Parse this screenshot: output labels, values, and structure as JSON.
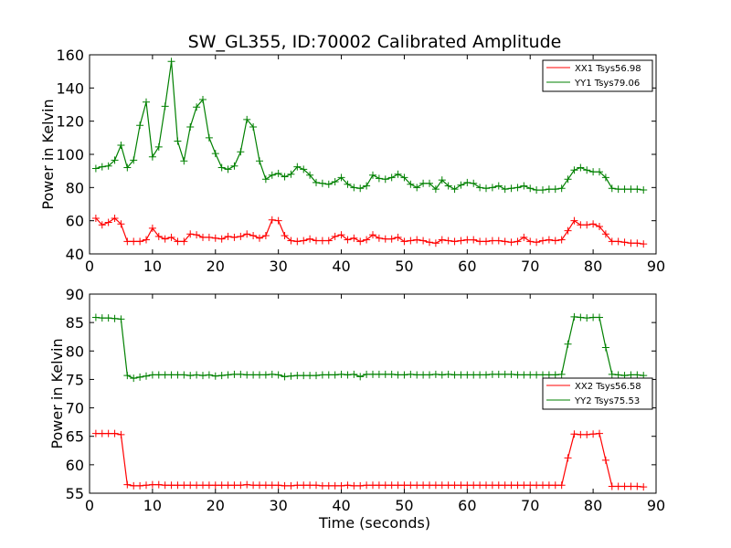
{
  "chart_data": [
    {
      "type": "line",
      "title": "SW_GL355, ID:70002 Calibrated Amplitude",
      "xlabel": "",
      "ylabel": "Power in Kelvin",
      "xlim": [
        0,
        90
      ],
      "ylim": [
        40,
        160
      ],
      "xticks": [
        "0",
        "10",
        "20",
        "30",
        "40",
        "50",
        "60",
        "70",
        "80",
        "90"
      ],
      "yticks": [
        "40",
        "60",
        "80",
        "100",
        "120",
        "140",
        "160"
      ],
      "legend_position": "top-right",
      "x": [
        1,
        2,
        3,
        4,
        5,
        6,
        7,
        8,
        9,
        10,
        11,
        12,
        13,
        14,
        15,
        16,
        17,
        18,
        19,
        20,
        21,
        22,
        23,
        24,
        25,
        26,
        27,
        28,
        29,
        30,
        31,
        32,
        33,
        34,
        35,
        36,
        37,
        38,
        39,
        40,
        41,
        42,
        43,
        44,
        45,
        46,
        47,
        48,
        49,
        50,
        51,
        52,
        53,
        54,
        55,
        56,
        57,
        58,
        59,
        60,
        61,
        62,
        63,
        64,
        65,
        66,
        67,
        68,
        69,
        70,
        71,
        72,
        73,
        74,
        75,
        76,
        77,
        78,
        79,
        80,
        81,
        82,
        83,
        84,
        85,
        86,
        87,
        88
      ],
      "series": [
        {
          "name": "XX1 Tsys56.98",
          "color": "#ff0000",
          "values": [
            61.5,
            57.5,
            59,
            61.5,
            58,
            47.5,
            47.5,
            47.5,
            48.5,
            55.5,
            50.5,
            49,
            50,
            47.5,
            47.5,
            52,
            51.5,
            50,
            50,
            49.5,
            49,
            50.5,
            50,
            50.5,
            52,
            51,
            49.5,
            51,
            60.5,
            60,
            51,
            48,
            47.5,
            48,
            49,
            48,
            48,
            48,
            50.5,
            51.5,
            48.5,
            49.5,
            47.5,
            48.5,
            51.5,
            49.5,
            49,
            49,
            50,
            47.5,
            48,
            48.5,
            48,
            47,
            46.5,
            48.5,
            48,
            47.5,
            48,
            48.5,
            48.5,
            47.5,
            47.5,
            48,
            48,
            47.5,
            47,
            47.5,
            50,
            47.5,
            47,
            48,
            48.5,
            48,
            48.5,
            54,
            60,
            57.5,
            57.5,
            58,
            56.5,
            52,
            47.5,
            47.5,
            47,
            46.5,
            46.5,
            46
          ]
        },
        {
          "name": "YY1 Tsys79.06",
          "color": "#008000",
          "values": [
            91.5,
            92.5,
            93,
            96.5,
            105.5,
            92,
            96.5,
            117.5,
            131.5,
            98.5,
            104.5,
            129,
            156,
            108,
            96,
            116.5,
            128.5,
            133,
            110,
            100.5,
            92,
            91,
            93,
            101.5,
            121,
            116.5,
            96,
            85,
            87.5,
            88.5,
            86.5,
            88,
            92.5,
            91,
            87.5,
            83,
            82.5,
            82,
            83.5,
            86,
            82,
            80,
            79.5,
            81,
            87.5,
            85.5,
            85,
            86,
            88,
            86,
            82,
            80,
            82.5,
            82.5,
            79,
            84.5,
            81,
            79,
            81.5,
            83,
            82.5,
            80,
            79.5,
            80,
            81,
            79,
            79.5,
            80,
            81,
            79.5,
            78.5,
            78.5,
            79,
            79,
            79.5,
            85,
            90.5,
            92,
            90.5,
            89.5,
            89.5,
            86,
            79.5,
            79,
            79,
            79,
            79,
            78.5
          ]
        }
      ]
    },
    {
      "type": "line",
      "title": "",
      "xlabel": "Time (seconds)",
      "ylabel": "Power in Kelvin",
      "xlim": [
        0,
        90
      ],
      "ylim": [
        55,
        90
      ],
      "xticks": [
        "0",
        "10",
        "20",
        "30",
        "40",
        "50",
        "60",
        "70",
        "80",
        "90"
      ],
      "yticks": [
        "55",
        "60",
        "65",
        "70",
        "75",
        "80",
        "85",
        "90"
      ],
      "legend_position": "center-right",
      "x": [
        1,
        2,
        3,
        4,
        5,
        6,
        7,
        8,
        9,
        10,
        11,
        12,
        13,
        14,
        15,
        16,
        17,
        18,
        19,
        20,
        21,
        22,
        23,
        24,
        25,
        26,
        27,
        28,
        29,
        30,
        31,
        32,
        33,
        34,
        35,
        36,
        37,
        38,
        39,
        40,
        41,
        42,
        43,
        44,
        45,
        46,
        47,
        48,
        49,
        50,
        51,
        52,
        53,
        54,
        55,
        56,
        57,
        58,
        59,
        60,
        61,
        62,
        63,
        64,
        65,
        66,
        67,
        68,
        69,
        70,
        71,
        72,
        73,
        74,
        75,
        76,
        77,
        78,
        79,
        80,
        81,
        82,
        83,
        84,
        85,
        86,
        87,
        88
      ],
      "series": [
        {
          "name": "XX2 Tsys56.58",
          "color": "#ff0000",
          "values": [
            65.5,
            65.5,
            65.5,
            65.5,
            65.3,
            56.5,
            56.3,
            56.3,
            56.4,
            56.5,
            56.5,
            56.4,
            56.4,
            56.4,
            56.4,
            56.4,
            56.4,
            56.4,
            56.4,
            56.4,
            56.4,
            56.4,
            56.4,
            56.4,
            56.5,
            56.4,
            56.4,
            56.4,
            56.4,
            56.4,
            56.3,
            56.3,
            56.4,
            56.4,
            56.4,
            56.4,
            56.3,
            56.3,
            56.3,
            56.3,
            56.4,
            56.3,
            56.3,
            56.4,
            56.4,
            56.4,
            56.4,
            56.4,
            56.4,
            56.4,
            56.4,
            56.4,
            56.4,
            56.4,
            56.4,
            56.4,
            56.4,
            56.4,
            56.4,
            56.4,
            56.4,
            56.4,
            56.4,
            56.4,
            56.4,
            56.4,
            56.4,
            56.4,
            56.4,
            56.4,
            56.4,
            56.4,
            56.4,
            56.4,
            56.4,
            61.2,
            65.4,
            65.3,
            65.3,
            65.4,
            65.5,
            60.8,
            56.2,
            56.2,
            56.2,
            56.2,
            56.2,
            56.1
          ]
        },
        {
          "name": "YY2 Tsys75.53",
          "color": "#008000",
          "values": [
            85.9,
            85.8,
            85.8,
            85.7,
            85.6,
            75.7,
            75.2,
            75.4,
            75.6,
            75.8,
            75.8,
            75.8,
            75.8,
            75.8,
            75.8,
            75.7,
            75.8,
            75.7,
            75.8,
            75.6,
            75.7,
            75.8,
            75.9,
            75.9,
            75.8,
            75.8,
            75.8,
            75.8,
            75.9,
            75.8,
            75.5,
            75.6,
            75.7,
            75.7,
            75.7,
            75.7,
            75.8,
            75.8,
            75.8,
            75.9,
            75.8,
            75.9,
            75.5,
            75.9,
            75.9,
            75.9,
            75.9,
            75.9,
            75.8,
            75.8,
            75.9,
            75.8,
            75.8,
            75.8,
            75.9,
            75.8,
            75.9,
            75.8,
            75.8,
            75.8,
            75.8,
            75.8,
            75.8,
            75.9,
            75.9,
            75.9,
            75.9,
            75.8,
            75.8,
            75.8,
            75.8,
            75.8,
            75.8,
            75.8,
            75.9,
            81.2,
            86,
            85.9,
            85.8,
            85.9,
            85.9,
            80.6,
            75.9,
            75.8,
            75.7,
            75.8,
            75.8,
            75.7
          ]
        }
      ]
    }
  ]
}
